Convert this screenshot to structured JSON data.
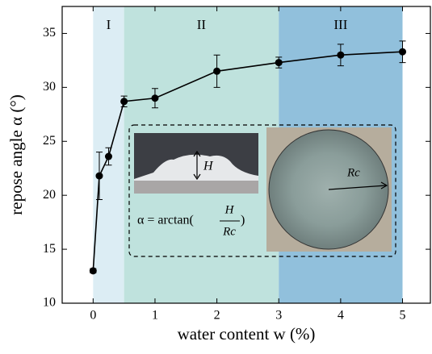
{
  "chart_data": {
    "type": "line",
    "x_label": "water content w (%)",
    "y_label": "repose angle α (°)",
    "x": [
      0,
      0.1,
      0.25,
      0.5,
      1,
      2,
      3,
      4,
      5
    ],
    "values": [
      13.0,
      21.8,
      23.6,
      28.7,
      29.0,
      31.5,
      32.3,
      33.0,
      33.3
    ],
    "errors": [
      0.2,
      2.2,
      0.8,
      0.5,
      0.9,
      1.5,
      0.5,
      1.0,
      1.0
    ],
    "color": "#000000",
    "xlim": [
      -0.5,
      5.45
    ],
    "xticks": [
      0,
      1,
      2,
      3,
      4,
      5
    ],
    "ylim": [
      10,
      37.5
    ],
    "yticks": [
      10,
      15,
      20,
      25,
      30,
      35
    ],
    "regions": [
      {
        "label": "I",
        "start": 0,
        "end": 0.5,
        "color": "#dcedf4"
      },
      {
        "label": "II",
        "start": 0.5,
        "end": 3,
        "color": "#bfe2dd"
      },
      {
        "label": "III",
        "start": 3,
        "end": 5,
        "color": "#91c0dc"
      }
    ],
    "inset": {
      "height_label": "H",
      "radius_label": "Rc",
      "formula": "α = arctan(",
      "numerator": "H",
      "denominator": "Rc",
      "formula_end": ")"
    }
  }
}
